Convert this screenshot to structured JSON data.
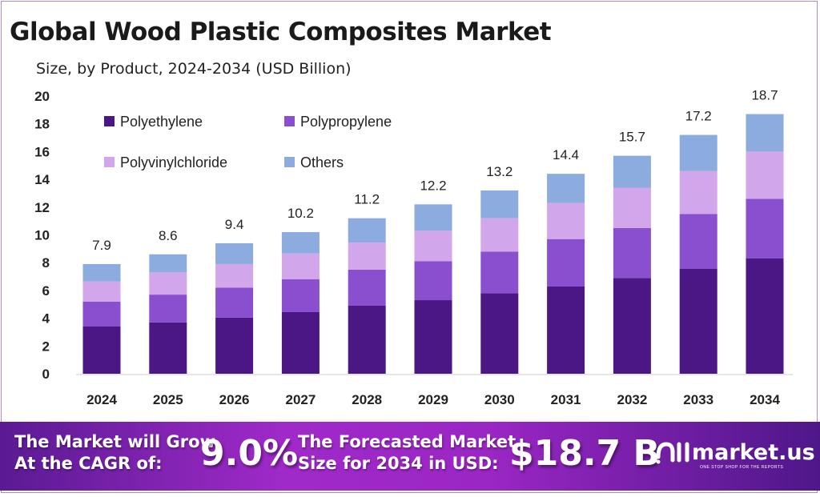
{
  "header": {
    "title": "Global Wood Plastic Composites Market",
    "subtitle": "Size, by Product, 2024-2034 (USD Billion)"
  },
  "chart_data": {
    "type": "bar",
    "stacked": true,
    "title": "Global Wood Plastic Composites Market",
    "subtitle": "Size, by Product, 2024-2034 (USD Billion)",
    "categories": [
      "2024",
      "2025",
      "2026",
      "2027",
      "2028",
      "2029",
      "2030",
      "2031",
      "2032",
      "2033",
      "2034"
    ],
    "series": [
      {
        "name": "Polyethylene",
        "color": "#4a1784",
        "values": [
          3.4,
          3.7,
          4.05,
          4.44,
          4.9,
          5.3,
          5.8,
          6.3,
          6.9,
          7.55,
          8.3
        ]
      },
      {
        "name": "Polypropylene",
        "color": "#8a4fcf",
        "values": [
          1.8,
          2.0,
          2.15,
          2.36,
          2.6,
          2.8,
          3.0,
          3.4,
          3.6,
          3.95,
          4.3
        ]
      },
      {
        "name": "Polyvinylchloride",
        "color": "#d2a6ea",
        "values": [
          1.45,
          1.6,
          1.7,
          1.86,
          1.95,
          2.2,
          2.4,
          2.6,
          2.9,
          3.1,
          3.4
        ]
      },
      {
        "name": "Others",
        "color": "#8cabdf",
        "values": [
          1.25,
          1.3,
          1.5,
          1.54,
          1.75,
          1.9,
          2.0,
          2.1,
          2.3,
          2.6,
          2.7
        ]
      }
    ],
    "totals": [
      "7.9",
      "8.6",
      "9.4",
      "10.2",
      "11.2",
      "12.2",
      "13.2",
      "14.4",
      "15.7",
      "17.2",
      "18.7"
    ],
    "yticks": [
      "0",
      "2",
      "4",
      "6",
      "8",
      "10",
      "12",
      "14",
      "16",
      "18",
      "20"
    ],
    "ylim": [
      0,
      20
    ],
    "grid": false,
    "legend": "top-left"
  },
  "banner": {
    "cagr_label_1": "The Market will Grow",
    "cagr_label_2": "At the CAGR of:",
    "cagr_value": "9.0%",
    "forecast_label_1": "The Forecasted Market",
    "forecast_label_2": "Size for 2034 in USD:",
    "forecast_value": "$18.7 B",
    "logo_text": "market.us",
    "logo_tagline": "ONE STOP SHOP FOR THE REPORTS"
  }
}
